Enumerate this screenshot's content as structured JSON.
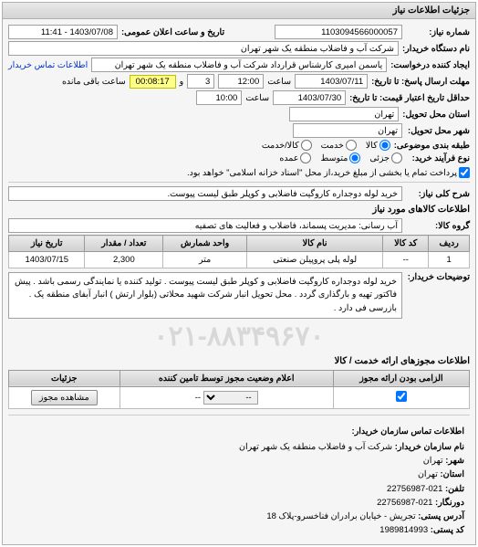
{
  "header": {
    "title": "جزئیات اطلاعات نیاز"
  },
  "info": {
    "need_no_label": "شماره نیاز:",
    "need_no": "1103094566000057",
    "date_label": "تاریخ و ساعت اعلان عمومی:",
    "date": "1403/07/08 - 11:41",
    "org_label": "نام دستگاه خریدار:",
    "org": "شرکت آب و فاضلاب منطقه یک شهر تهران",
    "creator_label": "ایجاد کننده درخواست:",
    "creator": "یاسمن امیری کارشناس قرارداد شرکت آب و فاضلاب منطقه یک شهر تهران",
    "contact_link": "اطلاعات تماس خریدار",
    "deadline_send_label": "مهلت ارسال پاسخ:\nتا تاریخ:",
    "deadline_send_date": "1403/07/11",
    "time_label": "ساعت",
    "deadline_send_time": "12:00",
    "remain_count": "3",
    "remain_and": "و",
    "remain_time": "00:08:17",
    "remain_label": "ساعت باقی مانده",
    "price_valid_label": "حداقل تاریخ اعتبار قیمت: تا تاریخ:",
    "price_valid_date": "1403/07/30",
    "price_valid_time": "10:00",
    "province_label": "استان محل تحویل:",
    "province": "تهران",
    "city_label": "شهر محل تحویل:",
    "city": "تهران",
    "category_label": "طبقه بندی موضوعی:",
    "cat_opts": {
      "goods": "کالا",
      "service": "خدمت",
      "goods_service": "کالا/خدمت"
    },
    "process_label": "نوع فرآیند خرید:",
    "proc_opts": {
      "small": "جزئی",
      "medium": "متوسط",
      "large": "عمده"
    },
    "process_note": "پرداخت تمام یا بخشی از مبلغ خرید،از محل \"اسناد خزانه اسلامی\" خواهد بود."
  },
  "need": {
    "title_label": "شرح کلی نیاز:",
    "title": "خرید لوله دوجداره کاروگیت فاضلابی و کوپلر طبق لیست پیوست.",
    "items_header": "اطلاعات کالاهای مورد نیاز",
    "group_label": "گروه کالا:",
    "group": "آب رسانی: مدیریت پسماند، فاضلاب و فعالیت های تصفیه"
  },
  "table": {
    "headers": [
      "ردیف",
      "کد کالا",
      "نام کالا",
      "واحد شمارش",
      "تعداد / مقدار",
      "تاریخ نیاز"
    ],
    "rows": [
      [
        "1",
        "--",
        "لوله پلی پروپیلن صنعتی",
        "متر",
        "2,300",
        "1403/07/15"
      ]
    ]
  },
  "desc": {
    "label": "توضیحات خریدار:",
    "text": "خرید لوله دوجداره کاروگیت فاضلابی و کوپلر طبق لیست پیوست . تولید کننده یا نمایندگی رسمی باشد . پیش فاکتور تهیه و بارگذاری گردد . محل تحویل انبار شرکت شهید محلاتی (بلوار ارتش ) انبار آبفای منطقه یک . بازرسی فی دارد ."
  },
  "watermark": "۰۲۱-۸۸۳۴۹۶۷۰",
  "auth": {
    "header": "اطلاعات مجوزهای ارائه خدمت / کالا",
    "cols": [
      "الزامی بودن ارائه مجوز",
      "اعلام وضعیت مجوز توسط تامین کننده",
      "جزئیات"
    ],
    "placeholder": "--",
    "view_btn": "مشاهده مجوز"
  },
  "contact": {
    "header": "اطلاعات تماس سازمان خریدار:",
    "org_lbl": "نام سازمان خریدار:",
    "org": "شرکت آب و فاضلاب منطقه یک شهر تهران",
    "city_lbl": "شهر:",
    "city": "تهران",
    "province_lbl": "استان:",
    "province": "تهران",
    "phone_lbl": "تلفن:",
    "phone": "021-22756987",
    "fax_lbl": "دورنگار:",
    "fax": "021-22756987",
    "addr_lbl": "آدرس پستی:",
    "addr": "تجریش - خیابان برادران فناخسرو-پلاک 18",
    "zip_lbl": "کد پستی:",
    "zip": "1989814993"
  }
}
